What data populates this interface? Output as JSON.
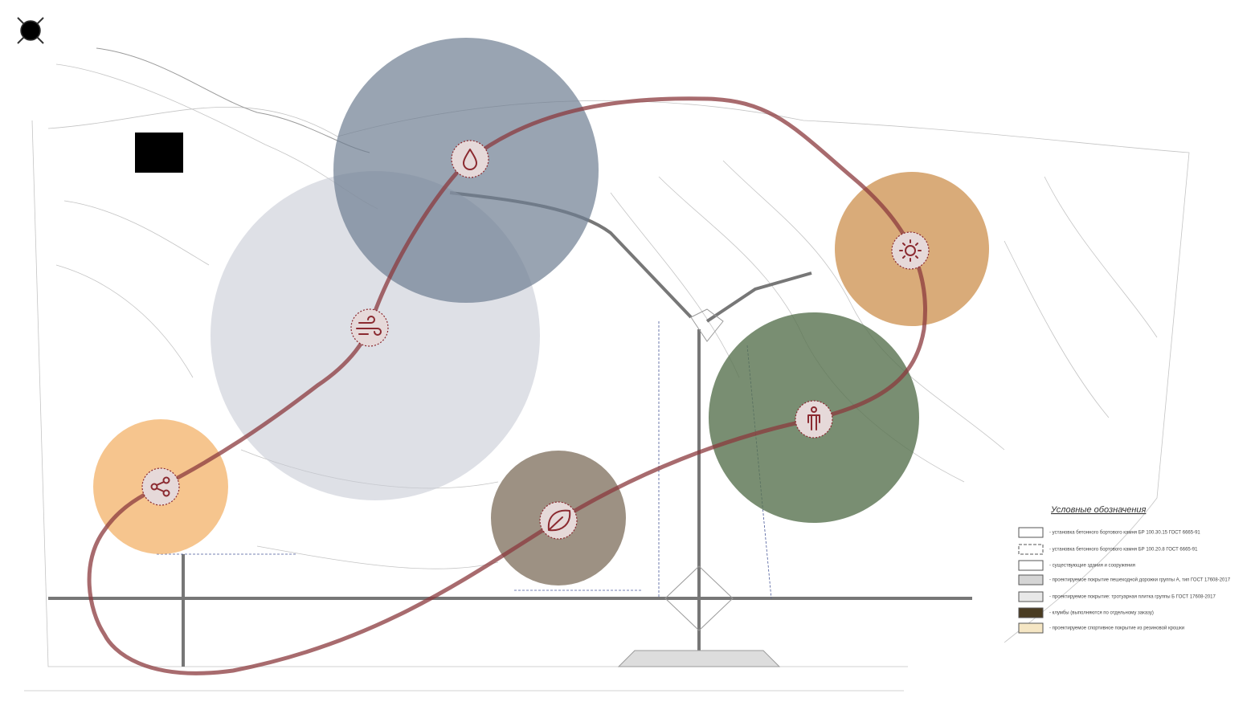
{
  "legend": {
    "title": "Условные обозначения",
    "items": [
      "- установка бетонного бортового камня БР 100.30.15 ГОСТ 6665-91",
      "- установка бетонного бортового камня БР 100.20.8 ГОСТ 6665-91",
      "- существующие здания и сооружения",
      "- проектируемое покрытие пешеходной дорожки группы А, тип ГОСТ 17608-2017",
      "- проектируемое покрытие: тротуарная плитка группы Б ГОСТ 17608-2017",
      "- клумбы (выполняются по отдельному заказу)",
      "- проектируемое спортивное покрытие из резиновой крошки"
    ]
  }
}
